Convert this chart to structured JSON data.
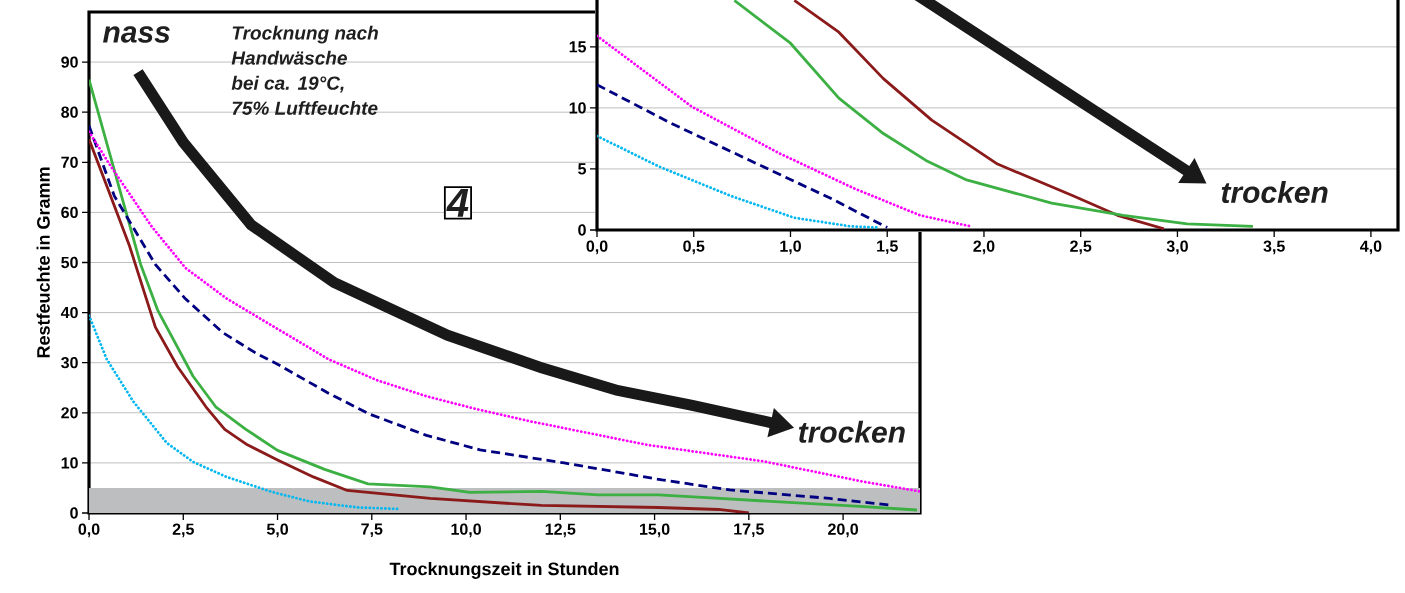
{
  "chart_data": [
    {
      "type": "line",
      "xlabel": "Trocknungszeit in Stunden",
      "ylabel": "Restfeuchte in Gramm",
      "xlim": [
        0,
        22.04
      ],
      "ylim": [
        0,
        100
      ],
      "xticks": [
        {
          "value": 0,
          "label": "0,0"
        },
        {
          "value": 2.5,
          "label": "2,5"
        },
        {
          "value": 5,
          "label": "5,0"
        },
        {
          "value": 7.5,
          "label": "7,5"
        },
        {
          "value": 10,
          "label": "10,0"
        },
        {
          "value": 12.5,
          "label": "12,5"
        },
        {
          "value": 15,
          "label": "15,0"
        },
        {
          "value": 17.5,
          "label": "17,5"
        },
        {
          "value": 20,
          "label": "20,0"
        }
      ],
      "yticks": [
        0,
        10,
        20,
        30,
        40,
        50,
        60,
        70,
        80,
        90
      ],
      "grid": "y",
      "bands": [
        {
          "axis": "y",
          "from": 0,
          "to": 5,
          "color": "#bcbec0"
        }
      ],
      "annotations": [
        "nass",
        "Trocknung nach",
        "Handwäsche",
        "bei ca. 19°C,",
        "75% Luftfeuchte",
        "4",
        "trocken"
      ],
      "series": [
        {
          "color": "#8b1a1a",
          "line_style": "solid",
          "x": [
            0,
            0.57,
            1.07,
            1.76,
            2.35,
            3.1,
            3.6,
            4.2,
            5.0,
            5.95,
            6.85,
            9.05,
            12.0,
            15.1,
            16.7,
            17.5
          ],
          "values": [
            74.6,
            63.3,
            53.4,
            37.1,
            29.2,
            21.2,
            16.7,
            13.6,
            10.6,
            7.2,
            4.5,
            2.9,
            1.5,
            1.1,
            0.7,
            0
          ]
        },
        {
          "color": "#3cb043",
          "line_style": "solid",
          "x": [
            0,
            1.37,
            1.82,
            2.76,
            3.36,
            4.16,
            5.0,
            6.25,
            7.4,
            9.05,
            10.1,
            12.0,
            13.5,
            15.1,
            16.5,
            20.45,
            21.96
          ],
          "values": [
            86.5,
            49.6,
            40.5,
            27.3,
            21.2,
            16.7,
            12.5,
            8.7,
            5.8,
            5.2,
            4.1,
            4.3,
            3.6,
            3.6,
            3.0,
            1.3,
            0.6
          ]
        },
        {
          "color": "#000080",
          "line_style": "dashed",
          "x": [
            0,
            0.67,
            1.76,
            2.55,
            3.55,
            4.45,
            5.05,
            6.35,
            7.45,
            8.95,
            10.37,
            12.6,
            15.2,
            17.0,
            19.65,
            21.2
          ],
          "values": [
            77.3,
            63.3,
            49.6,
            42.8,
            36.0,
            31.8,
            29.5,
            23.9,
            19.7,
            15.5,
            12.6,
            10.0,
            6.6,
            4.6,
            2.9,
            1.6
          ]
        },
        {
          "color": "#ff00ff",
          "line_style": "dotted",
          "x": [
            0,
            0.57,
            1.66,
            2.56,
            3.65,
            4.65,
            6.35,
            7.64,
            8.95,
            10.24,
            11.7,
            14.8,
            17.9,
            20.5,
            22.04
          ],
          "values": [
            76.1,
            69.3,
            57.2,
            48.9,
            42.8,
            38.3,
            30.7,
            26.5,
            23.3,
            20.8,
            18.3,
            13.6,
            10.3,
            6.3,
            4.3
          ]
        },
        {
          "color": "#00b7f0",
          "line_style": "dotted",
          "x": [
            0,
            0.47,
            1.17,
            2.06,
            2.76,
            3.65,
            4.85,
            5.85,
            7.14,
            8.19
          ],
          "values": [
            39.4,
            30.7,
            22.3,
            14.0,
            10.2,
            7.2,
            4.2,
            2.3,
            1.1,
            0.8
          ]
        }
      ]
    },
    {
      "type": "line",
      "xlim": [
        0,
        4.14
      ],
      "ylim": [
        0,
        19.2
      ],
      "xticks": [
        {
          "value": 0,
          "label": "0,0"
        },
        {
          "value": 0.5,
          "label": "0,5"
        },
        {
          "value": 1,
          "label": "1,0"
        },
        {
          "value": 1.5,
          "label": "1,5"
        },
        {
          "value": 2,
          "label": "2,0"
        },
        {
          "value": 2.5,
          "label": "2,5"
        },
        {
          "value": 3,
          "label": "3,0"
        },
        {
          "value": 3.5,
          "label": "3,5"
        },
        {
          "value": 4,
          "label": "4,0"
        }
      ],
      "yticks": [
        0,
        5,
        10,
        15
      ],
      "grid": "y",
      "annotations": [
        "trocken"
      ],
      "series": [
        {
          "color": "#8b1a1a",
          "line_style": "solid",
          "x": [
            1.02,
            1.25,
            1.48,
            1.73,
            2.07,
            2.46,
            2.69,
            2.93
          ],
          "values": [
            18.8,
            16.2,
            12.4,
            9.0,
            5.4,
            2.8,
            1.2,
            0.1
          ]
        },
        {
          "color": "#3cb043",
          "line_style": "solid",
          "x": [
            0.71,
            1.0,
            1.25,
            1.48,
            1.7,
            1.91,
            2.35,
            2.72,
            3.05,
            3.39
          ],
          "values": [
            18.8,
            15.3,
            10.8,
            7.9,
            5.7,
            4.1,
            2.2,
            1.2,
            0.5,
            0.3
          ]
        },
        {
          "color": "#000080",
          "line_style": "dashed",
          "x": [
            0,
            0.375,
            0.83,
            1.22,
            1.5
          ],
          "values": [
            11.9,
            8.8,
            5.4,
            2.5,
            0.2
          ]
        },
        {
          "color": "#ff00ff",
          "line_style": "dotted",
          "x": [
            0,
            0.49,
            0.94,
            1.33,
            1.67,
            1.93
          ],
          "values": [
            15.9,
            10.1,
            6.3,
            3.4,
            1.2,
            0.3
          ]
        },
        {
          "color": "#00b7f0",
          "line_style": "dotted",
          "x": [
            0,
            0.32,
            0.69,
            1.02,
            1.31,
            1.45
          ],
          "values": [
            7.7,
            5.2,
            2.8,
            1.0,
            0.3,
            0.2
          ]
        }
      ]
    }
  ]
}
